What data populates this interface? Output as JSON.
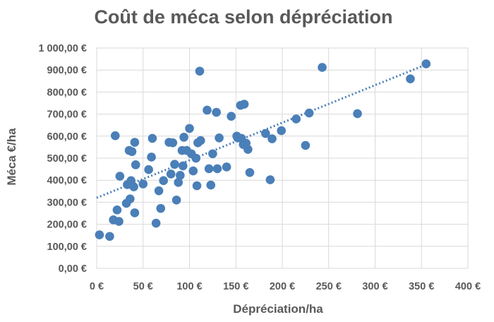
{
  "chart_data": {
    "type": "scatter",
    "title": "Coût de méca selon dépréciation",
    "xlabel": "Dépréciation/ha",
    "ylabel": "Méca €/ha",
    "xlim": [
      0,
      400
    ],
    "ylim": [
      0,
      1000
    ],
    "x_ticks": [
      "0 €",
      "50 €",
      "100 €",
      "150 €",
      "200 €",
      "250 €",
      "300 €",
      "350 €",
      "400 €"
    ],
    "y_ticks": [
      "0,00 €",
      "100,00 €",
      "200,00 €",
      "300,00 €",
      "400,00 €",
      "500,00 €",
      "600,00 €",
      "700,00 €",
      "800,00 €",
      "900,00 €",
      "1 000,00 €"
    ],
    "grid": "horizontal and vertical",
    "legend": "none",
    "point_color": "#4a7fb8",
    "trendline": {
      "style": "dotted linear",
      "from": [
        0,
        320
      ],
      "to": [
        355,
        925
      ]
    },
    "points": [
      [
        3,
        152
      ],
      [
        14,
        145
      ],
      [
        18,
        220
      ],
      [
        20,
        602
      ],
      [
        22,
        265
      ],
      [
        24,
        213
      ],
      [
        25,
        418
      ],
      [
        32,
        295
      ],
      [
        33,
        380
      ],
      [
        35,
        535
      ],
      [
        36,
        315
      ],
      [
        37,
        398
      ],
      [
        38,
        530
      ],
      [
        40,
        370
      ],
      [
        41,
        572
      ],
      [
        41,
        252
      ],
      [
        42,
        470
      ],
      [
        50,
        383
      ],
      [
        56,
        448
      ],
      [
        59,
        505
      ],
      [
        60,
        590
      ],
      [
        64,
        205
      ],
      [
        67,
        352
      ],
      [
        69,
        272
      ],
      [
        72,
        398
      ],
      [
        78,
        572
      ],
      [
        80,
        428
      ],
      [
        82,
        570
      ],
      [
        84,
        472
      ],
      [
        86,
        310
      ],
      [
        88,
        390
      ],
      [
        90,
        422
      ],
      [
        92,
        535
      ],
      [
        93,
        465
      ],
      [
        94,
        595
      ],
      [
        97,
        535
      ],
      [
        100,
        635
      ],
      [
        102,
        520
      ],
      [
        104,
        442
      ],
      [
        107,
        500
      ],
      [
        108,
        375
      ],
      [
        109,
        570
      ],
      [
        111,
        895
      ],
      [
        112,
        580
      ],
      [
        119,
        718
      ],
      [
        121,
        452
      ],
      [
        123,
        378
      ],
      [
        125,
        520
      ],
      [
        129,
        708
      ],
      [
        130,
        452
      ],
      [
        132,
        592
      ],
      [
        140,
        460
      ],
      [
        145,
        690
      ],
      [
        151,
        600
      ],
      [
        152,
        592
      ],
      [
        155,
        740
      ],
      [
        156,
        590
      ],
      [
        158,
        562
      ],
      [
        159,
        745
      ],
      [
        161,
        568
      ],
      [
        163,
        540
      ],
      [
        165,
        435
      ],
      [
        182,
        612
      ],
      [
        187,
        402
      ],
      [
        189,
        588
      ],
      [
        199,
        625
      ],
      [
        215,
        678
      ],
      [
        225,
        558
      ],
      [
        229,
        705
      ],
      [
        243,
        912
      ],
      [
        281,
        702
      ],
      [
        338,
        860
      ],
      [
        355,
        928
      ]
    ]
  }
}
